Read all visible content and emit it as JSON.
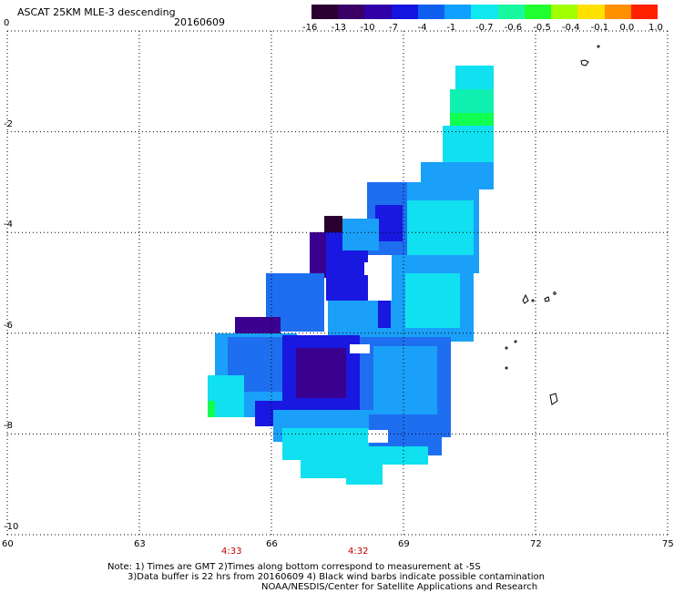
{
  "header": {
    "title": "ASCAT 25KM MLE-3 descending",
    "date": "20160609"
  },
  "colorbar": {
    "labels": [
      "-16",
      "-13",
      "-10",
      "-7",
      "-4",
      "-1",
      "-0.7",
      "-0.6",
      "-0.5",
      "-0.4",
      "-0.1",
      "0.0",
      "1.0"
    ],
    "colors": [
      "#2a0030",
      "#3a0066",
      "#3000a8",
      "#1414e0",
      "#1060f0",
      "#10a0ff",
      "#10e8f0",
      "#18f8a0",
      "#20ff30",
      "#a0ff00",
      "#ffe000",
      "#ff9000",
      "#ff2000"
    ]
  },
  "axes": {
    "lon_labels": [
      "60",
      "63",
      "66",
      "69",
      "72",
      "75"
    ],
    "lat_labels": [
      "0",
      "-2",
      "-4",
      "-6",
      "-8",
      "-10"
    ],
    "lon_range": [
      60,
      75
    ],
    "lat_range": [
      0,
      -10
    ]
  },
  "time_labels": [
    "4:33",
    "4:32"
  ],
  "notes": {
    "line1": "Note: 1) Times are GMT 2)Times along bottom correspond to measurement at -5S",
    "line2": "3)Data buffer is 22 hrs from 20160609 4) Black wind barbs indicate possible contamination",
    "line3": "NOAA/NESDIS/Center for Satellite Applications and Research"
  },
  "data_colors": {
    "dark_purple": "#2a0030",
    "indigo": "#3a0090",
    "deep_blue": "#1818e0",
    "blue": "#1e6ef0",
    "light_blue": "#1aa0f8",
    "cyan": "#10e0f0",
    "aqua_green": "#10f0b0",
    "green": "#10ff50"
  }
}
